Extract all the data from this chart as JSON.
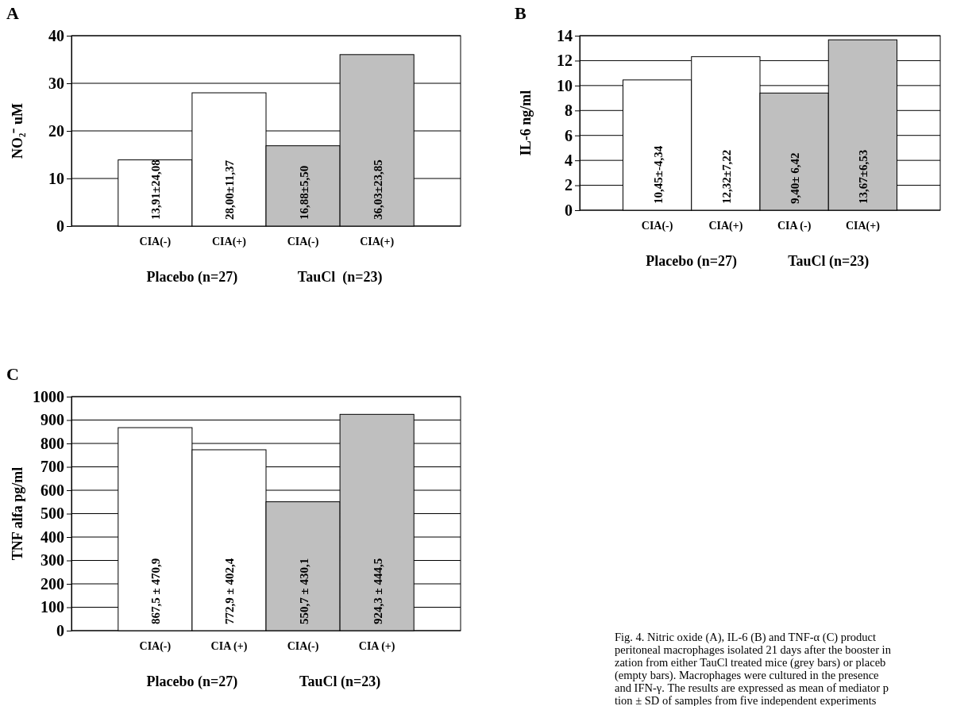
{
  "chart_data": [
    {
      "type": "bar",
      "title": "A",
      "ylabel": "NO₂⁻ uM",
      "categories": [
        "CIA(-)",
        "CIA(+)",
        "CIA(-)",
        "CIA(+)"
      ],
      "values": [
        13.91,
        28.0,
        16.88,
        36.03
      ],
      "colors": [
        "#ffffff",
        "#ffffff",
        "#bfbfbf",
        "#bfbfbf"
      ],
      "value_labels": [
        "13,91±24,08",
        "28,00±11,37",
        "16,88±5,50",
        "36,03±23,85"
      ],
      "ylim": [
        0,
        40
      ],
      "yticks": [
        0,
        10,
        20,
        30,
        40
      ],
      "grid": "y",
      "annotations": [
        "Placebo (n=27)",
        "TauCl  (n=23)"
      ]
    },
    {
      "type": "bar",
      "title": "B",
      "ylabel": "IL-6 ng/ml",
      "categories": [
        "CIA(-)",
        "CIA(+)",
        "CIA (-)",
        "CIA(+)"
      ],
      "values": [
        10.45,
        12.32,
        9.4,
        13.67
      ],
      "colors": [
        "#ffffff",
        "#ffffff",
        "#bfbfbf",
        "#bfbfbf"
      ],
      "value_labels": [
        "10,45±-4,34",
        "12,32±7,22",
        "9,40± 6,42",
        "13,67±6,53"
      ],
      "ylim": [
        0,
        14
      ],
      "yticks": [
        0,
        2,
        4,
        6,
        8,
        10,
        12,
        14
      ],
      "grid": "y",
      "annotations": [
        "Placebo (n=27)",
        "TauCl (n=23)"
      ]
    },
    {
      "type": "bar",
      "title": "C",
      "ylabel": "TNF alfa pg/ml",
      "categories": [
        "CIA(-)",
        "CIA (+)",
        "CIA(-)",
        "CIA (+)"
      ],
      "values": [
        867.5,
        772.9,
        550.7,
        924.3
      ],
      "colors": [
        "#ffffff",
        "#ffffff",
        "#bfbfbf",
        "#bfbfbf"
      ],
      "value_labels": [
        "867,5 ± 470,9",
        "772,9 ± 402,4",
        "550,7 ± 430,1",
        "924,3 ± 444,5"
      ],
      "ylim": [
        0,
        1000
      ],
      "yticks": [
        0,
        100,
        200,
        300,
        400,
        500,
        600,
        700,
        800,
        900,
        1000
      ],
      "grid": "y",
      "annotations": [
        "Placebo (n=27)",
        "TauCl (n=23)"
      ]
    },
    {
      "type": "other",
      "annotations": [
        "Fig. 4. Nitric oxide (A), IL-6 (B) and TNF-α (C) product",
        "peritoneal macrophages isolated 21 days after the booster in",
        "zation from either TauCl treated mice (grey bars) or placeb",
        "(empty bars). Macrophages were cultured in the presence",
        "and IFN-γ. The results are expressed as mean of mediator p",
        "tion ± SD of samples from five independent experiments"
      ]
    }
  ]
}
